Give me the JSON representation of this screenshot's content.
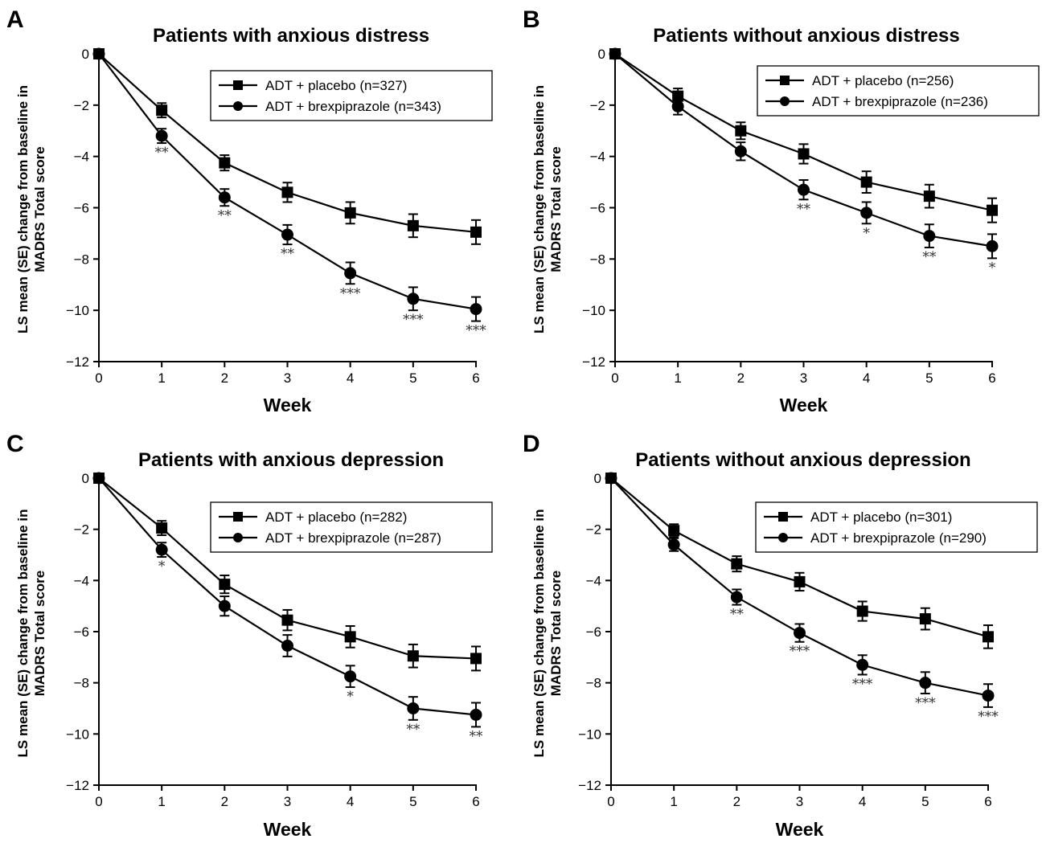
{
  "chart_data": [
    {
      "type": "line",
      "panel_label": "A",
      "title": "Patients with anxious distress",
      "xlabel": "Week",
      "ylabel_line1": "LS mean (SE) change from baseline in",
      "ylabel_line2": "MADRS Total score",
      "xlim": [
        0,
        6
      ],
      "ylim": [
        -12,
        0
      ],
      "x_ticks": [
        "0",
        "1",
        "2",
        "3",
        "4",
        "5",
        "6"
      ],
      "y_ticks": [
        "0",
        "−2",
        "−4",
        "−6",
        "−8",
        "−10",
        "−12"
      ],
      "legend_position": "top-right",
      "x": [
        0,
        1,
        2,
        3,
        4,
        5,
        6
      ],
      "series": [
        {
          "name": "ADT + placebo (n=327)",
          "marker": "square",
          "values": [
            0,
            -2.2,
            -4.25,
            -5.4,
            -6.2,
            -6.7,
            -6.95
          ],
          "se": [
            0,
            0.28,
            0.3,
            0.38,
            0.42,
            0.45,
            0.47
          ]
        },
        {
          "name": "ADT + brexpiprazole (n=343)",
          "marker": "circle",
          "values": [
            0,
            -3.2,
            -5.6,
            -7.05,
            -8.55,
            -9.55,
            -9.95
          ],
          "se": [
            0,
            0.28,
            0.33,
            0.38,
            0.42,
            0.45,
            0.47
          ],
          "significance": [
            "",
            "**",
            "**",
            "**",
            "***",
            "***",
            "***"
          ]
        }
      ]
    },
    {
      "type": "line",
      "panel_label": "B",
      "title": "Patients without anxious distress",
      "xlabel": "Week",
      "ylabel_line1": "LS mean (SE) change from baseline in",
      "ylabel_line2": "MADRS Total score",
      "xlim": [
        0,
        6
      ],
      "ylim": [
        -12,
        0
      ],
      "x_ticks": [
        "0",
        "1",
        "2",
        "3",
        "4",
        "5",
        "6"
      ],
      "y_ticks": [
        "0",
        "−2",
        "−4",
        "−6",
        "−8",
        "−10",
        "−12"
      ],
      "legend_position": "top-right",
      "x": [
        0,
        1,
        2,
        3,
        4,
        5,
        6
      ],
      "series": [
        {
          "name": "ADT + placebo (n=256)",
          "marker": "square",
          "values": [
            0,
            -1.65,
            -3.0,
            -3.9,
            -5.0,
            -5.55,
            -6.1
          ],
          "se": [
            0,
            0.3,
            0.33,
            0.38,
            0.42,
            0.45,
            0.47
          ]
        },
        {
          "name": "ADT + brexpiprazole (n=236)",
          "marker": "circle",
          "values": [
            0,
            -2.05,
            -3.8,
            -5.3,
            -6.2,
            -7.1,
            -7.5
          ],
          "se": [
            0,
            0.32,
            0.35,
            0.38,
            0.42,
            0.45,
            0.47
          ],
          "significance": [
            "",
            "",
            "",
            "**",
            "*",
            "**",
            "*"
          ]
        }
      ]
    },
    {
      "type": "line",
      "panel_label": "C",
      "title": "Patients with anxious depression",
      "xlabel": "Week",
      "ylabel_line1": "LS mean (SE) change from baseline in",
      "ylabel_line2": "MADRS Total score",
      "xlim": [
        0,
        6
      ],
      "ylim": [
        -12,
        0
      ],
      "x_ticks": [
        "0",
        "1",
        "2",
        "3",
        "4",
        "5",
        "6"
      ],
      "y_ticks": [
        "0",
        "−2",
        "−4",
        "−6",
        "−8",
        "−10",
        "−12"
      ],
      "legend_position": "top-right",
      "x": [
        0,
        1,
        2,
        3,
        4,
        5,
        6
      ],
      "series": [
        {
          "name": "ADT + placebo (n=282)",
          "marker": "square",
          "values": [
            0,
            -1.95,
            -4.15,
            -5.55,
            -6.2,
            -6.95,
            -7.05
          ],
          "se": [
            0,
            0.28,
            0.35,
            0.4,
            0.42,
            0.45,
            0.47
          ]
        },
        {
          "name": "ADT + brexpiprazole (n=287)",
          "marker": "circle",
          "values": [
            0,
            -2.8,
            -5.0,
            -6.55,
            -7.75,
            -9.0,
            -9.25
          ],
          "se": [
            0,
            0.28,
            0.38,
            0.42,
            0.42,
            0.45,
            0.47
          ],
          "significance": [
            "",
            "*",
            "",
            "",
            "*",
            "**",
            "**"
          ]
        }
      ]
    },
    {
      "type": "line",
      "panel_label": "D",
      "title": "Patients without anxious depression",
      "xlabel": "Week",
      "ylabel_line1": "LS mean (SE) change from baseline in",
      "ylabel_line2": "MADRS Total score",
      "xlim": [
        0,
        6
      ],
      "ylim": [
        -12,
        0
      ],
      "x_ticks": [
        "0",
        "1",
        "2",
        "3",
        "4",
        "5",
        "6"
      ],
      "y_ticks": [
        "0",
        "−2",
        "−4",
        "−6",
        "−8",
        "−10",
        "−12"
      ],
      "legend_position": "top-right",
      "x": [
        0,
        1,
        2,
        3,
        4,
        5,
        6
      ],
      "series": [
        {
          "name": "ADT + placebo (n=301)",
          "marker": "square",
          "values": [
            0,
            -2.05,
            -3.35,
            -4.05,
            -5.2,
            -5.5,
            -6.2
          ],
          "se": [
            0,
            0.25,
            0.3,
            0.35,
            0.38,
            0.42,
            0.45
          ]
        },
        {
          "name": "ADT + brexpiprazole (n=290)",
          "marker": "circle",
          "values": [
            0,
            -2.6,
            -4.65,
            -6.05,
            -7.3,
            -8.0,
            -8.5
          ],
          "se": [
            0,
            0.25,
            0.3,
            0.35,
            0.38,
            0.42,
            0.45
          ],
          "significance": [
            "",
            "",
            "**",
            "***",
            "***",
            "***",
            "***"
          ]
        }
      ]
    }
  ]
}
